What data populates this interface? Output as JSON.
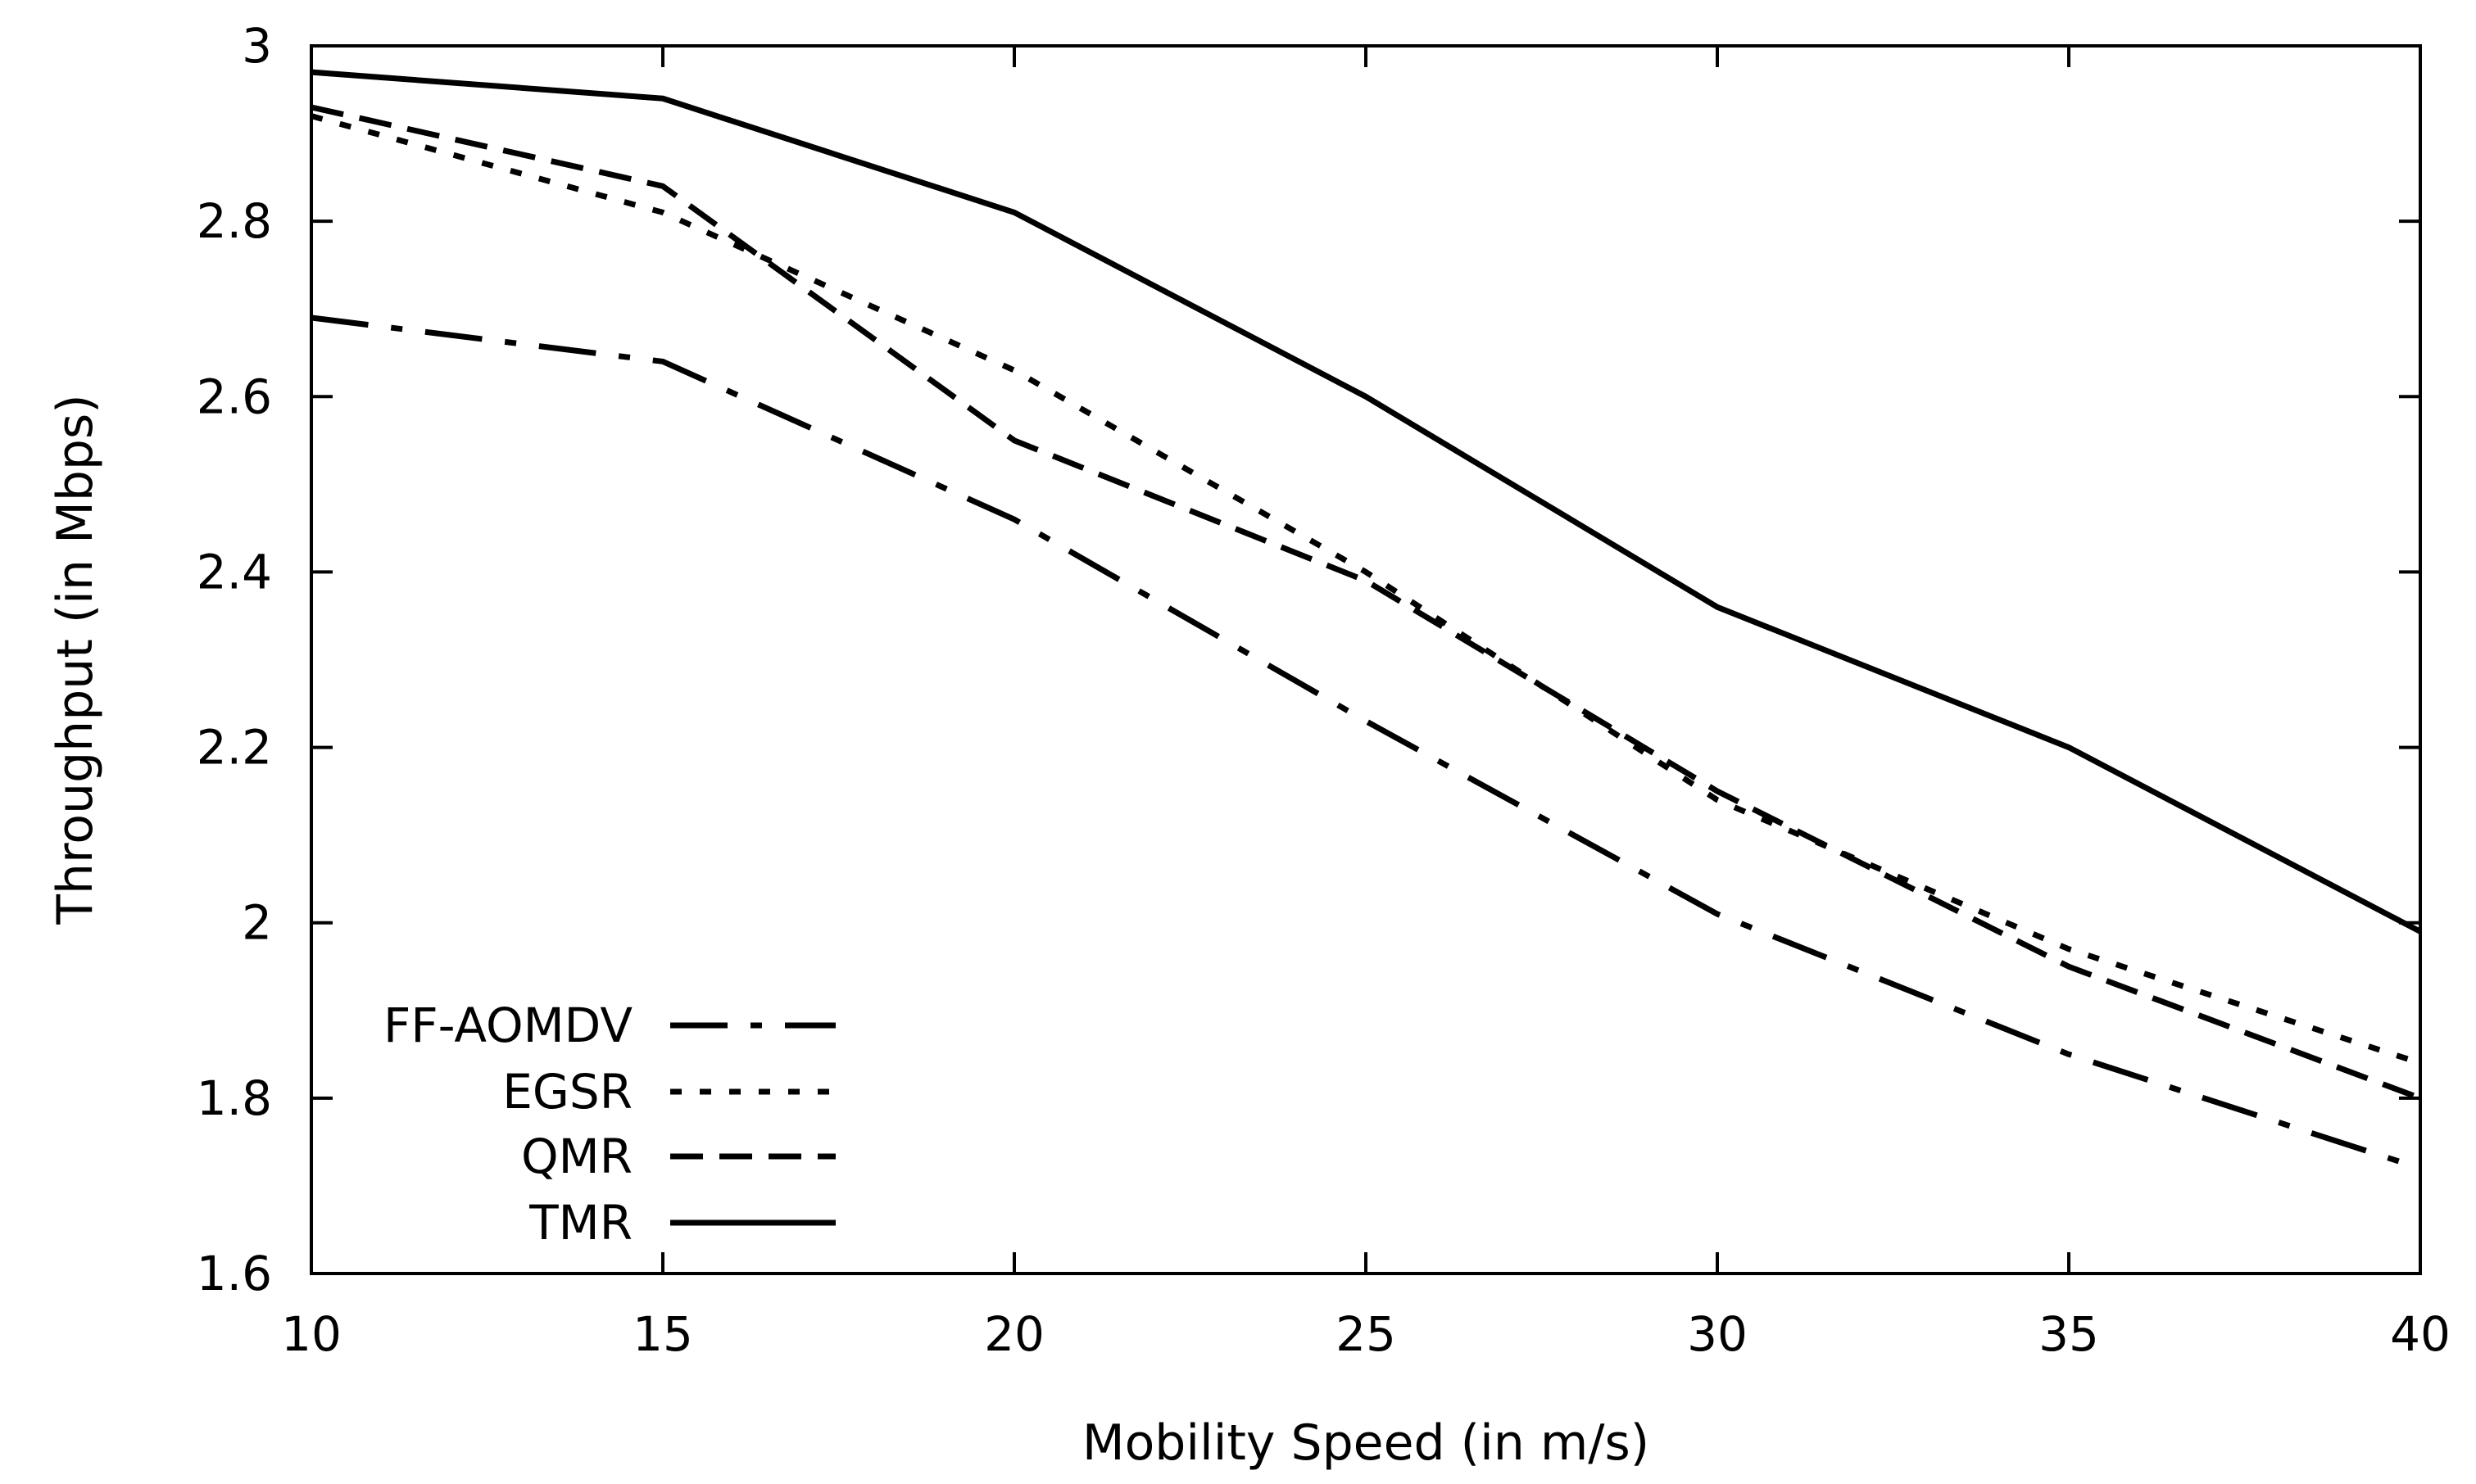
{
  "chart_data": {
    "type": "line",
    "title": "",
    "xlabel": "Mobility Speed (in m/s)",
    "ylabel": "Throughput (in Mbps)",
    "x": [
      10,
      15,
      20,
      25,
      30,
      35,
      40
    ],
    "xlim": [
      10,
      40
    ],
    "ylim": [
      1.6,
      3
    ],
    "xticks": [
      10,
      15,
      20,
      25,
      30,
      35,
      40
    ],
    "yticks": [
      1.6,
      1.8,
      2.0,
      2.2,
      2.4,
      2.6,
      2.8,
      3.0
    ],
    "xtick_labels": [
      "10",
      "15",
      "20",
      "25",
      "30",
      "35",
      "40"
    ],
    "ytick_labels": [
      "1.6",
      "1.8",
      "2",
      "2.2",
      "2.4",
      "2.6",
      "2.8",
      "3"
    ],
    "grid": false,
    "legend_position": "bottom-left",
    "series": [
      {
        "name": "FF-AOMDV",
        "style": "dash-dot",
        "values": [
          2.69,
          2.64,
          2.46,
          2.23,
          2.01,
          1.85,
          1.72
        ]
      },
      {
        "name": "EGSR",
        "style": "dotted",
        "values": [
          2.92,
          2.81,
          2.63,
          2.4,
          2.14,
          1.97,
          1.84
        ]
      },
      {
        "name": "QMR",
        "style": "dashed",
        "values": [
          2.93,
          2.84,
          2.55,
          2.39,
          2.15,
          1.95,
          1.8
        ]
      },
      {
        "name": "TMR",
        "style": "solid",
        "values": [
          2.97,
          2.94,
          2.81,
          2.6,
          2.36,
          2.2,
          1.99
        ]
      }
    ],
    "colors": {
      "line": "#000000",
      "axis": "#000000",
      "background": "#ffffff"
    }
  }
}
